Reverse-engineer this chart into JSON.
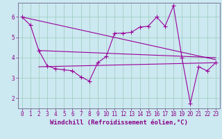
{
  "xlabel": "Windchill (Refroidissement éolien,°C)",
  "bg_color": "#cce8f0",
  "grid_color": "#99ccbb",
  "line_color": "#990099",
  "xlim": [
    -0.5,
    23.5
  ],
  "ylim": [
    1.5,
    6.7
  ],
  "yticks": [
    2,
    3,
    4,
    5,
    6
  ],
  "xticks": [
    0,
    1,
    2,
    3,
    4,
    5,
    6,
    7,
    8,
    9,
    10,
    11,
    12,
    13,
    14,
    15,
    16,
    17,
    18,
    19,
    20,
    21,
    22,
    23
  ],
  "series1": [
    [
      0,
      6.0
    ],
    [
      1,
      5.6
    ],
    [
      2,
      4.35
    ],
    [
      3,
      3.6
    ],
    [
      4,
      3.45
    ],
    [
      5,
      3.4
    ],
    [
      6,
      3.35
    ],
    [
      7,
      3.05
    ],
    [
      8,
      2.85
    ],
    [
      9,
      3.75
    ],
    [
      10,
      4.05
    ],
    [
      11,
      5.2
    ],
    [
      12,
      5.2
    ],
    [
      13,
      5.25
    ],
    [
      14,
      5.5
    ],
    [
      15,
      5.55
    ],
    [
      16,
      6.0
    ],
    [
      17,
      5.55
    ],
    [
      18,
      6.55
    ],
    [
      19,
      4.0
    ],
    [
      20,
      1.75
    ],
    [
      21,
      3.55
    ],
    [
      22,
      3.35
    ],
    [
      23,
      3.75
    ]
  ],
  "line2": [
    [
      0,
      6.0
    ],
    [
      23,
      3.9
    ]
  ],
  "line3": [
    [
      2,
      4.35
    ],
    [
      23,
      4.0
    ]
  ],
  "line4": [
    [
      2,
      3.55
    ],
    [
      23,
      3.75
    ]
  ],
  "marker": "+",
  "marker_size": 4,
  "line_width": 0.8,
  "xlabel_fontsize": 6.5,
  "tick_fontsize": 5.5,
  "tick_color": "#880088",
  "xlabel_color": "#880088",
  "spine_color": "#777799"
}
